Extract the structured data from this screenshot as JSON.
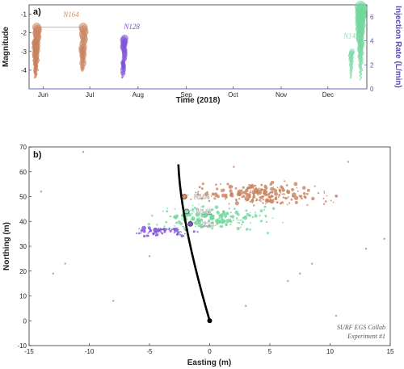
{
  "chart_data": [
    {
      "type": "scatter",
      "panel_label": "a)",
      "xlabel": "Time (2018)",
      "ylabel": "Magnitude",
      "ylabel_right": "Injection Rate (L/min)",
      "x_ticks": [
        "Jun",
        "Jul",
        "Aug",
        "Sep",
        "Oct",
        "Nov",
        "Dec"
      ],
      "x_range_days": [
        143,
        360
      ],
      "x_tick_days": [
        152,
        182,
        213,
        244,
        274,
        305,
        335
      ],
      "ylim": [
        -5,
        -0.5
      ],
      "y_inverted": true,
      "y_ticks": [
        -4,
        -3,
        -2,
        -1
      ],
      "ylim_right": [
        0,
        7
      ],
      "y_ticks_right": [
        0,
        2,
        4,
        6
      ],
      "injection_rate_baseline": 0,
      "annotations": [
        {
          "text": "N164",
          "day": 170,
          "mag": -1.15,
          "color": "#e08a5a"
        },
        {
          "text": "N128",
          "day": 209,
          "mag": -1.8,
          "color": "#7c4fd6"
        },
        {
          "text": "N142",
          "day": 350,
          "mag": -2.3,
          "color": "#8fe0a8"
        }
      ],
      "bridge_line": {
        "day_start": 148,
        "day_end": 178,
        "mag": -1.7,
        "color": "#e08a5a"
      },
      "series": [
        {
          "name": "N164",
          "color": "#c8825c",
          "clusters": [
            {
              "day": 147,
              "mag_top": -2.5,
              "mag_bottom": -4.4,
              "n": 40
            },
            {
              "day": 148,
              "mag_top": -1.7,
              "mag_bottom": -4.2,
              "n": 25
            },
            {
              "day": 177,
              "mag_top": -2.8,
              "mag_bottom": -4.0,
              "n": 14
            },
            {
              "day": 178,
              "mag_top": -1.7,
              "mag_bottom": -3.9,
              "n": 18
            }
          ]
        },
        {
          "name": "N128",
          "color": "#7c4fd6",
          "clusters": [
            {
              "day": 203,
              "mag_top": -3.6,
              "mag_bottom": -4.4,
              "n": 12
            },
            {
              "day": 204,
              "mag_top": -2.3,
              "mag_bottom": -4.2,
              "n": 22
            }
          ]
        },
        {
          "name": "N142",
          "color": "#6fd79a",
          "clusters": [
            {
              "day": 350,
              "mag_top": -3.0,
              "mag_bottom": -4.4,
              "n": 14
            },
            {
              "day": 356,
              "mag_top": -0.6,
              "mag_bottom": -4.5,
              "n": 40
            }
          ]
        }
      ]
    },
    {
      "type": "scatter",
      "panel_label": "b)",
      "xlabel": "Easting (m)",
      "ylabel": "Northing (m)",
      "xlim": [
        -15,
        15
      ],
      "ylim": [
        -10,
        70
      ],
      "x_ticks": [
        -15,
        -10,
        -5,
        0,
        5,
        10,
        15
      ],
      "y_ticks": [
        -10,
        0,
        10,
        20,
        30,
        40,
        50,
        60,
        70
      ],
      "well_labels": [
        {
          "text": "N164",
          "x": -1.3,
          "y": 50
        },
        {
          "text": "N142",
          "x": -1.1,
          "y": 44
        },
        {
          "text": "N128",
          "x": -0.9,
          "y": 39
        }
      ],
      "injection_points": [
        {
          "x": -2.1,
          "y": 50,
          "color": "#e08a5a"
        },
        {
          "x": -1.9,
          "y": 44,
          "color": "#8fe0a8"
        },
        {
          "x": -1.6,
          "y": 39,
          "color": "#7c4fd6"
        }
      ],
      "borehole": {
        "start": [
          -2.6,
          63
        ],
        "end": [
          0,
          0
        ],
        "color": "#000000"
      },
      "credit": [
        "SURF EGS Collab",
        "Experiment #1"
      ],
      "series": [
        {
          "name": "N164",
          "color": "#c8825c",
          "cluster": {
            "x_range": [
              -3,
              12
            ],
            "y_range": [
              45,
              57
            ],
            "n": 230
          }
        },
        {
          "name": "N142",
          "color": "#6fd79a",
          "cluster": {
            "x_range": [
              -7,
              7
            ],
            "y_range": [
              34,
              48
            ],
            "n": 200
          }
        },
        {
          "name": "N128",
          "color": "#7c4fd6",
          "cluster": {
            "x_range": [
              -7,
              -0.5
            ],
            "y_range": [
              33,
              39
            ],
            "n": 70
          }
        },
        {
          "name": "scattered",
          "color": "#c8825c",
          "points": [
            {
              "x": -13,
              "y": 19
            },
            {
              "x": -12,
              "y": 23
            },
            {
              "x": -10.5,
              "y": 68
            },
            {
              "x": 11.5,
              "y": 64
            },
            {
              "x": 7.5,
              "y": 19
            },
            {
              "x": 6.5,
              "y": 16
            },
            {
              "x": 8.5,
              "y": 23
            },
            {
              "x": 10.5,
              "y": 2
            },
            {
              "x": 13,
              "y": 29
            },
            {
              "x": 14.5,
              "y": 33
            },
            {
              "x": -14,
              "y": 52
            },
            {
              "x": -8,
              "y": 8
            },
            {
              "x": 3,
              "y": 6
            },
            {
              "x": -5,
              "y": 26
            },
            {
              "x": 2,
              "y": 62
            },
            {
              "x": 9.5,
              "y": 47
            }
          ]
        }
      ]
    }
  ]
}
